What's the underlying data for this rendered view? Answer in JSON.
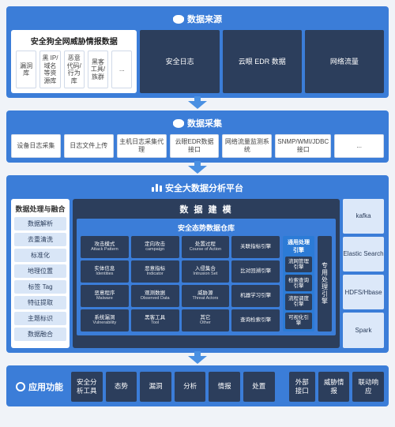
{
  "colors": {
    "primary": "#3b7dd8",
    "dark": "#2c3e5c",
    "light": "#dce8f9",
    "bg": "#f0f3f8",
    "white": "#ffffff"
  },
  "source": {
    "title": "数据来源",
    "threat_panel": {
      "title": "安全狗全网威胁情报数据",
      "items": [
        "漏洞库",
        "黑 IP/域名等资源库",
        "恶意代码/行为库",
        "黑客工具/族群",
        "..."
      ]
    },
    "others": [
      "安全日志",
      "云眼 EDR 数据",
      "网络流量"
    ]
  },
  "collect": {
    "title": "数据采集",
    "items": [
      "设备日志采集",
      "日志文件上传",
      "主机日志采集代理",
      "云眼EDR数据接口",
      "网络流量监测系统",
      "SNMP/WMI/JDBC接口",
      "..."
    ]
  },
  "platform": {
    "title": "安全大数据分析平台",
    "left": {
      "title": "数据处理与融合",
      "items": [
        "数据解析",
        "去重清洗",
        "标准化",
        "地理位置",
        "标签 Tag",
        "特征提取",
        "主题标识",
        "数据融合"
      ]
    },
    "mid": {
      "title": "数 据 建 模",
      "inner_title": "安全态势数据仓库",
      "cubes": [
        {
          "cn": "攻击模式",
          "en": "Attack Pattern"
        },
        {
          "cn": "定向攻击",
          "en": "campaign"
        },
        {
          "cn": "处置过程",
          "en": "Course of Action"
        },
        {
          "cn": "关联指标引擎",
          "en": ""
        },
        {
          "cn": "实体信息",
          "en": "Identities"
        },
        {
          "cn": "恶意指标",
          "en": "Indicator"
        },
        {
          "cn": "入侵集合",
          "en": "Intrusion Set"
        },
        {
          "cn": "比对回溯引擎",
          "en": ""
        },
        {
          "cn": "恶意程序",
          "en": "Malware"
        },
        {
          "cn": "观测数据",
          "en": "Observed Data"
        },
        {
          "cn": "威胁源",
          "en": "Threat Actors"
        },
        {
          "cn": "机器学习引擎",
          "en": ""
        },
        {
          "cn": "系统漏洞",
          "en": "Vulnerability"
        },
        {
          "cn": "黑客工具",
          "en": "Tool"
        },
        {
          "cn": "其它",
          "en": "Other"
        },
        {
          "cn": "查询检索引擎",
          "en": ""
        }
      ],
      "general": {
        "title": "通用处理引擎",
        "items": [
          "流网管理引擎",
          "检索查询引擎",
          "流程调度引擎",
          "可视化引擎"
        ]
      },
      "dedicated": "专用处理引擎"
    },
    "right": [
      "kafka",
      "Elastic Search",
      "HDFS/Hbase",
      "Spark"
    ]
  },
  "app": {
    "title": "应用功能",
    "left": [
      "安全分析工具",
      "态势",
      "漏洞",
      "分析",
      "情报",
      "处置"
    ],
    "right_label": "外部接口",
    "right": [
      "威胁情报",
      "联动响应"
    ]
  }
}
